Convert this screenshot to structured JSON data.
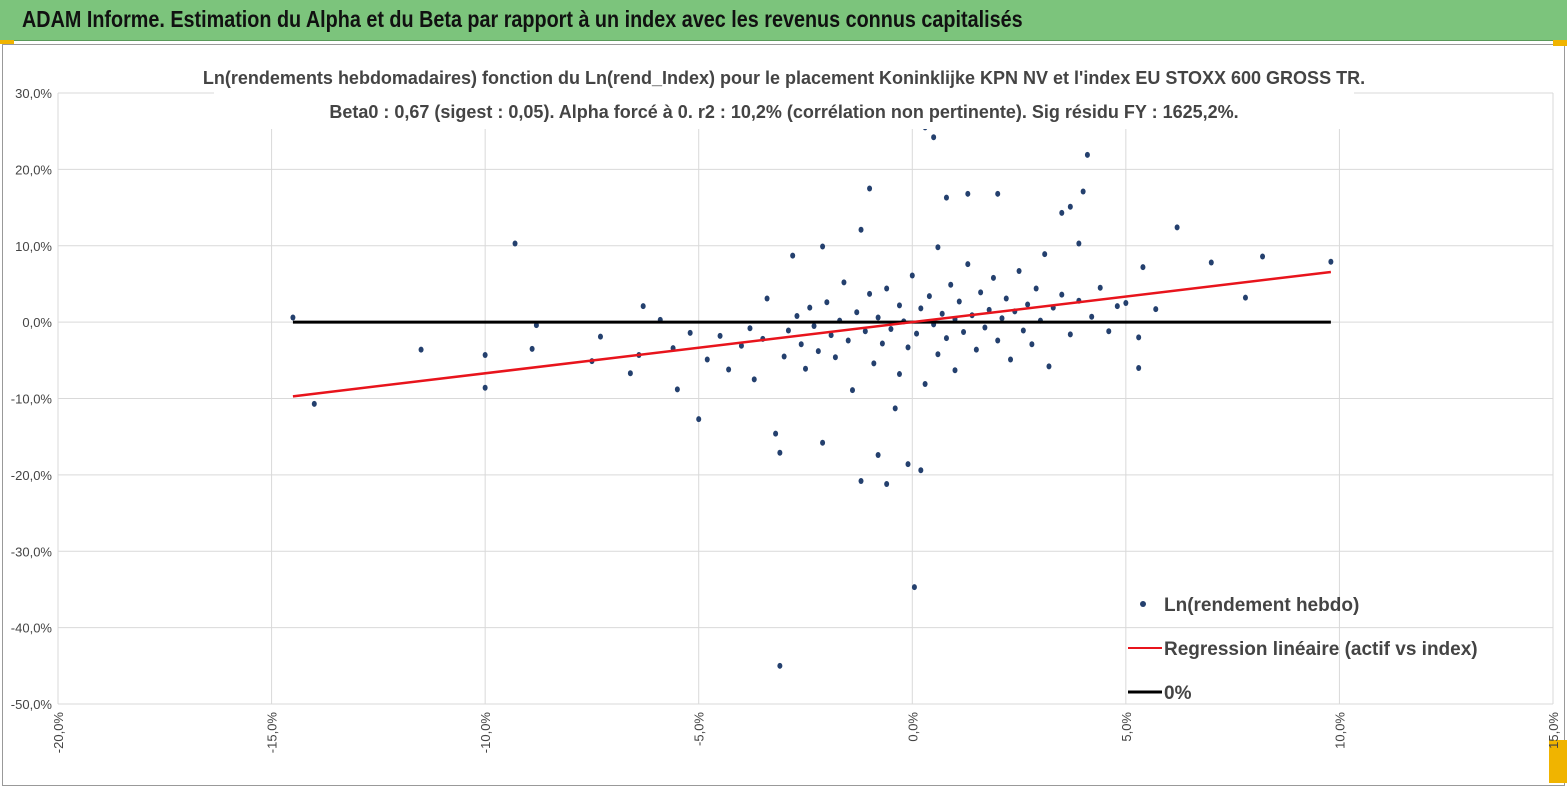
{
  "banner": {
    "title": "ADAM Informe. Estimation du Alpha et du Beta par rapport à un index avec les revenus connus capitalisés"
  },
  "chart_data": {
    "type": "scatter",
    "title": "Ln(rendements hebdomadaires) fonction du Ln(rend_Index) pour le placement Koninklijke KPN NV et l'index EU STOXX 600 GROSS TR.",
    "subtitle": "Beta0 : 0,67 (sigest : 0,05). Alpha forcé à 0. r2 : 10,2% (corrélation non pertinente). Sig résidu FY : 1625,2%.",
    "xlim": [
      -20,
      15
    ],
    "ylim": [
      -50,
      30
    ],
    "x_ticks": [
      -20,
      -15,
      -10,
      -5,
      0,
      5,
      10,
      15
    ],
    "x_tick_labels": [
      "-20,0%",
      "-15,0%",
      "-10,0%",
      "-5,0%",
      "0,0%",
      "5,0%",
      "10,0%",
      "15,0%"
    ],
    "y_ticks": [
      30,
      20,
      10,
      0,
      -10,
      -20,
      -30,
      -40,
      -50
    ],
    "y_tick_labels": [
      "30,0%",
      "20,0%",
      "10,0%",
      "0,0%",
      "-10,0%",
      "-20,0%",
      "-30,0%",
      "-40,0%",
      "-50,0%"
    ],
    "grid": true,
    "legend_position": "bottom-right",
    "legend": [
      "Ln(rendement hebdo)",
      "Regression linéaire (actif vs index)",
      "0%"
    ],
    "colors": {
      "points": "#24406e",
      "regression": "#e8141c",
      "zero": "#000000"
    },
    "regression": {
      "slope": 0.67,
      "intercept": 0,
      "x_range": [
        -14.5,
        9.8
      ]
    },
    "zero_line": {
      "y": 0,
      "x_range": [
        -14.5,
        9.8
      ]
    },
    "series": [
      {
        "name": "Ln(rendement hebdo)",
        "points": [
          [
            -14.5,
            0.6
          ],
          [
            -14,
            -10.7
          ],
          [
            -11.5,
            -3.6
          ],
          [
            -10,
            -4.3
          ],
          [
            -10,
            -8.6
          ],
          [
            -9.3,
            10.3
          ],
          [
            -8.8,
            -0.4
          ],
          [
            -8.9,
            -3.5
          ],
          [
            -7.5,
            -5.1
          ],
          [
            -7.3,
            -1.9
          ],
          [
            -6.3,
            2.1
          ],
          [
            -6.6,
            -6.7
          ],
          [
            -6.4,
            -4.3
          ],
          [
            -5.9,
            0.3
          ],
          [
            -5.6,
            -3.4
          ],
          [
            -5.5,
            -8.8
          ],
          [
            -5,
            -12.7
          ],
          [
            -5.2,
            -1.4
          ],
          [
            -4.8,
            -4.9
          ],
          [
            -4.5,
            -1.8
          ],
          [
            -4.3,
            -6.2
          ],
          [
            -4,
            -3.1
          ],
          [
            -3.8,
            -0.8
          ],
          [
            -3.7,
            -7.5
          ],
          [
            -3.5,
            -2.2
          ],
          [
            -3.4,
            3.1
          ],
          [
            -3.2,
            -14.6
          ],
          [
            -3.1,
            -17.1
          ],
          [
            -3.1,
            -45
          ],
          [
            -3,
            -4.5
          ],
          [
            -2.9,
            -1.1
          ],
          [
            -2.8,
            8.7
          ],
          [
            -2.7,
            0.8
          ],
          [
            -2.6,
            -2.9
          ],
          [
            -2.5,
            -6.1
          ],
          [
            -2.4,
            1.9
          ],
          [
            -2.3,
            -0.5
          ],
          [
            -2.2,
            -3.8
          ],
          [
            -2.1,
            9.9
          ],
          [
            -2.1,
            -15.8
          ],
          [
            -2,
            2.6
          ],
          [
            -1.9,
            -1.7
          ],
          [
            -1.8,
            -4.6
          ],
          [
            -1.7,
            0.2
          ],
          [
            -1.6,
            5.2
          ],
          [
            -1.5,
            -2.4
          ],
          [
            -1.4,
            -8.9
          ],
          [
            -1.3,
            1.3
          ],
          [
            -1.2,
            12.1
          ],
          [
            -1.2,
            -20.8
          ],
          [
            -1.1,
            -1.2
          ],
          [
            -1,
            17.5
          ],
          [
            -1,
            3.7
          ],
          [
            -0.9,
            -5.4
          ],
          [
            -0.8,
            -17.4
          ],
          [
            -0.8,
            0.6
          ],
          [
            -0.7,
            -2.8
          ],
          [
            -0.6,
            -21.2
          ],
          [
            -0.6,
            4.4
          ],
          [
            -0.5,
            -0.9
          ],
          [
            -0.4,
            -11.3
          ],
          [
            -0.3,
            2.2
          ],
          [
            -0.3,
            -6.8
          ],
          [
            -0.2,
            0.1
          ],
          [
            -0.1,
            -18.6
          ],
          [
            -0.1,
            -3.3
          ],
          [
            0,
            6.1
          ],
          [
            0.05,
            -34.7
          ],
          [
            0.1,
            -1.5
          ],
          [
            0.2,
            -19.4
          ],
          [
            0.2,
            1.8
          ],
          [
            0.3,
            25.5
          ],
          [
            0.3,
            -8.1
          ],
          [
            0.4,
            3.4
          ],
          [
            0.5,
            24.2
          ],
          [
            0.5,
            -0.3
          ],
          [
            0.6,
            9.8
          ],
          [
            0.6,
            -4.2
          ],
          [
            0.7,
            1.1
          ],
          [
            0.8,
            16.3
          ],
          [
            0.8,
            -2.1
          ],
          [
            0.9,
            4.9
          ],
          [
            1,
            0.4
          ],
          [
            1,
            -6.3
          ],
          [
            1.1,
            2.7
          ],
          [
            1.2,
            -1.3
          ],
          [
            1.3,
            16.8
          ],
          [
            1.3,
            7.6
          ],
          [
            1.4,
            0.9
          ],
          [
            1.5,
            -3.6
          ],
          [
            1.6,
            3.9
          ],
          [
            1.7,
            -0.7
          ],
          [
            1.8,
            1.6
          ],
          [
            1.9,
            5.8
          ],
          [
            2,
            16.8
          ],
          [
            2,
            -2.4
          ],
          [
            2.1,
            0.5
          ],
          [
            2.2,
            3.1
          ],
          [
            2.3,
            -4.9
          ],
          [
            2.4,
            1.4
          ],
          [
            2.5,
            6.7
          ],
          [
            2.6,
            -1.1
          ],
          [
            2.7,
            2.3
          ],
          [
            2.8,
            -2.9
          ],
          [
            2.9,
            4.4
          ],
          [
            3,
            0.2
          ],
          [
            3.1,
            8.9
          ],
          [
            3.2,
            -5.8
          ],
          [
            3.3,
            1.9
          ],
          [
            3.5,
            14.3
          ],
          [
            3.5,
            3.6
          ],
          [
            3.7,
            15.1
          ],
          [
            3.7,
            -1.6
          ],
          [
            3.9,
            10.3
          ],
          [
            3.9,
            2.8
          ],
          [
            4,
            17.1
          ],
          [
            4.1,
            21.9
          ],
          [
            4.2,
            0.7
          ],
          [
            4.4,
            4.5
          ],
          [
            4.6,
            -1.2
          ],
          [
            4.8,
            2.1
          ],
          [
            5,
            2.5
          ],
          [
            5.3,
            -6
          ],
          [
            5.3,
            -2
          ],
          [
            5.4,
            7.2
          ],
          [
            5.7,
            1.7
          ],
          [
            6.2,
            12.4
          ],
          [
            7,
            7.8
          ],
          [
            7.8,
            3.2
          ],
          [
            8.2,
            8.6
          ],
          [
            9.8,
            7.9
          ]
        ]
      }
    ]
  }
}
